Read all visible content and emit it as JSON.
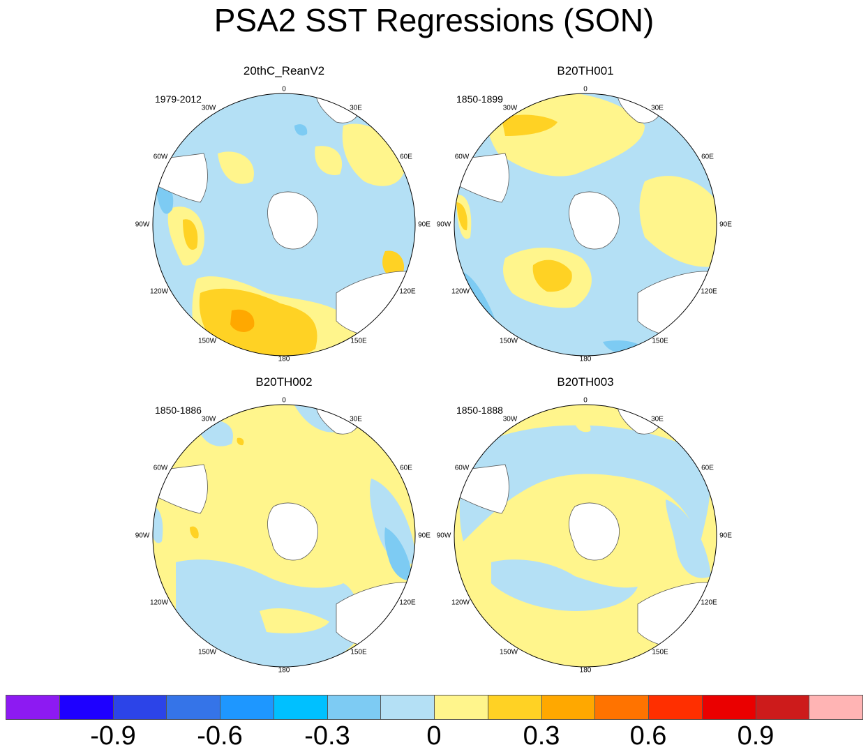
{
  "figure": {
    "title": "PSA2 SST Regressions (SON)"
  },
  "lon_labels": [
    "0",
    "30E",
    "60E",
    "90E",
    "120E",
    "150E",
    "180",
    "150W",
    "120W",
    "90W",
    "60W",
    "30W"
  ],
  "panels": [
    {
      "title": "20thC_ReanV2",
      "years": "1979-2012"
    },
    {
      "title": "B20TH001",
      "years": "1850-1899"
    },
    {
      "title": "B20TH002",
      "years": "1850-1886"
    },
    {
      "title": "B20TH003",
      "years": "1850-1888"
    }
  ],
  "colorbar": {
    "colors": [
      "#8d1af2",
      "#1e00ff",
      "#2c44e8",
      "#3574e8",
      "#1e97ff",
      "#00c0ff",
      "#7dcbf3",
      "#b4e0f5",
      "#fff58c",
      "#ffd224",
      "#ffa800",
      "#ff7300",
      "#ff2f00",
      "#ea0000",
      "#cd1b1b",
      "#ffb4b4"
    ],
    "tick_labels": [
      "-0.9",
      "-0.6",
      "-0.3",
      "0",
      "0.3",
      "0.6",
      "0.9"
    ]
  },
  "chart_data": {
    "type": "heatmap",
    "title": "PSA2 SST Regressions (SON)",
    "projection": "south polar stereographic",
    "colorbar_ticks": [
      -0.9,
      -0.6,
      -0.3,
      0,
      0.3,
      0.6,
      0.9
    ],
    "colorbar_interval": 0.15,
    "panels": [
      {
        "title": "20thC_ReanV2",
        "years": "1979-2012",
        "dominant_sign": "negative (light blue)",
        "notable": "warm anomaly 0.15-0.45 in Pacific sector 150W-180"
      },
      {
        "title": "B20TH001",
        "years": "1850-1899",
        "dominant_sign": "mixed",
        "notable": "warm anomaly near 150W-180 mid-latitudes"
      },
      {
        "title": "B20TH002",
        "years": "1850-1886",
        "dominant_sign": "positive (light yellow)",
        "notable": "cool anomaly near 90E-120E"
      },
      {
        "title": "B20TH003",
        "years": "1850-1888",
        "dominant_sign": "positive (light yellow)",
        "notable": "cool band around Antarctic circumpolar region"
      }
    ]
  }
}
